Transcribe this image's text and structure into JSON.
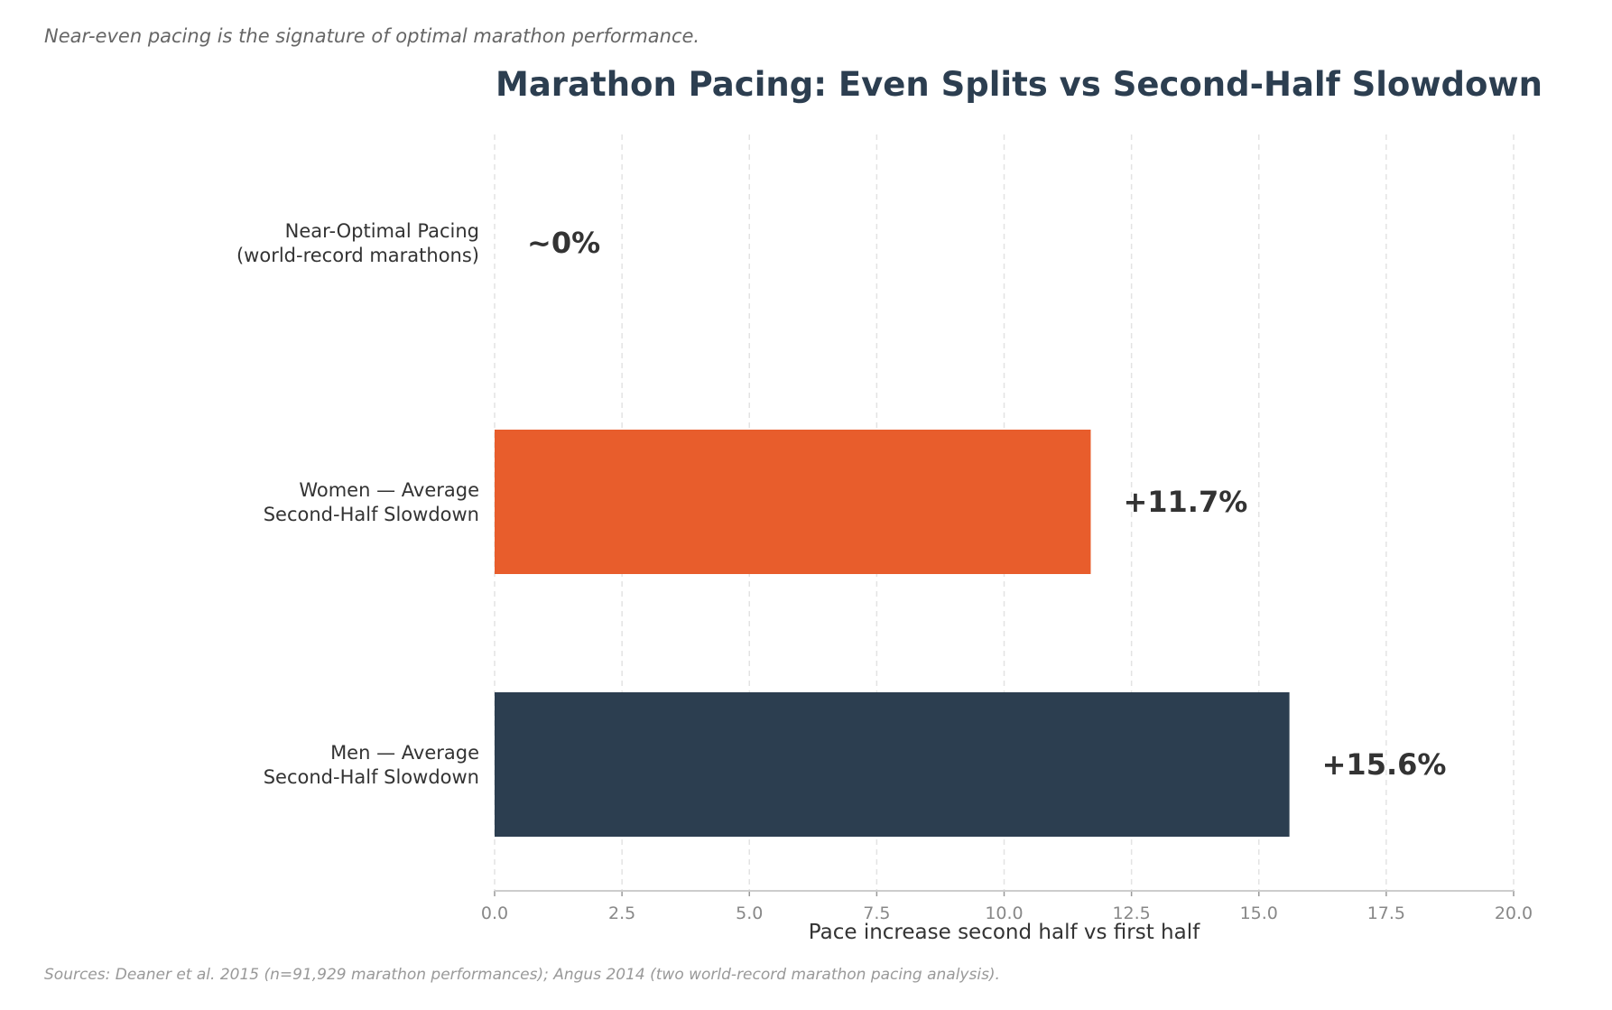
{
  "subtitle": "Near-even pacing is the signature of optimal marathon performance.",
  "source": "Sources: Deaner et al. 2015 (n=91,929 marathon performances); Angus 2014 (two world-record marathon pacing analysis).",
  "chart_data": {
    "type": "bar",
    "orientation": "horizontal",
    "title": "Marathon Pacing: Even Splits vs Second-Half Slowdown",
    "xlabel": "Pace increase second half vs first half",
    "ylabel": "",
    "xlim": [
      0,
      20
    ],
    "xticks": [
      "0.0",
      "2.5",
      "5.0",
      "7.5",
      "10.0",
      "12.5",
      "15.0",
      "17.5",
      "20.0"
    ],
    "grid": "vertical dashed",
    "categories": [
      [
        "Near-Optimal Pacing",
        "(world-record marathons)"
      ],
      [
        "Women — Average",
        "Second-Half Slowdown"
      ],
      [
        "Men — Average",
        "Second-Half Slowdown"
      ]
    ],
    "values": [
      0,
      11.7,
      15.6
    ],
    "data_labels": [
      "~0%",
      "+11.7%",
      "+15.6%"
    ],
    "colors": [
      "#2c3e50",
      "#e85d2c",
      "#2c3e50"
    ]
  }
}
